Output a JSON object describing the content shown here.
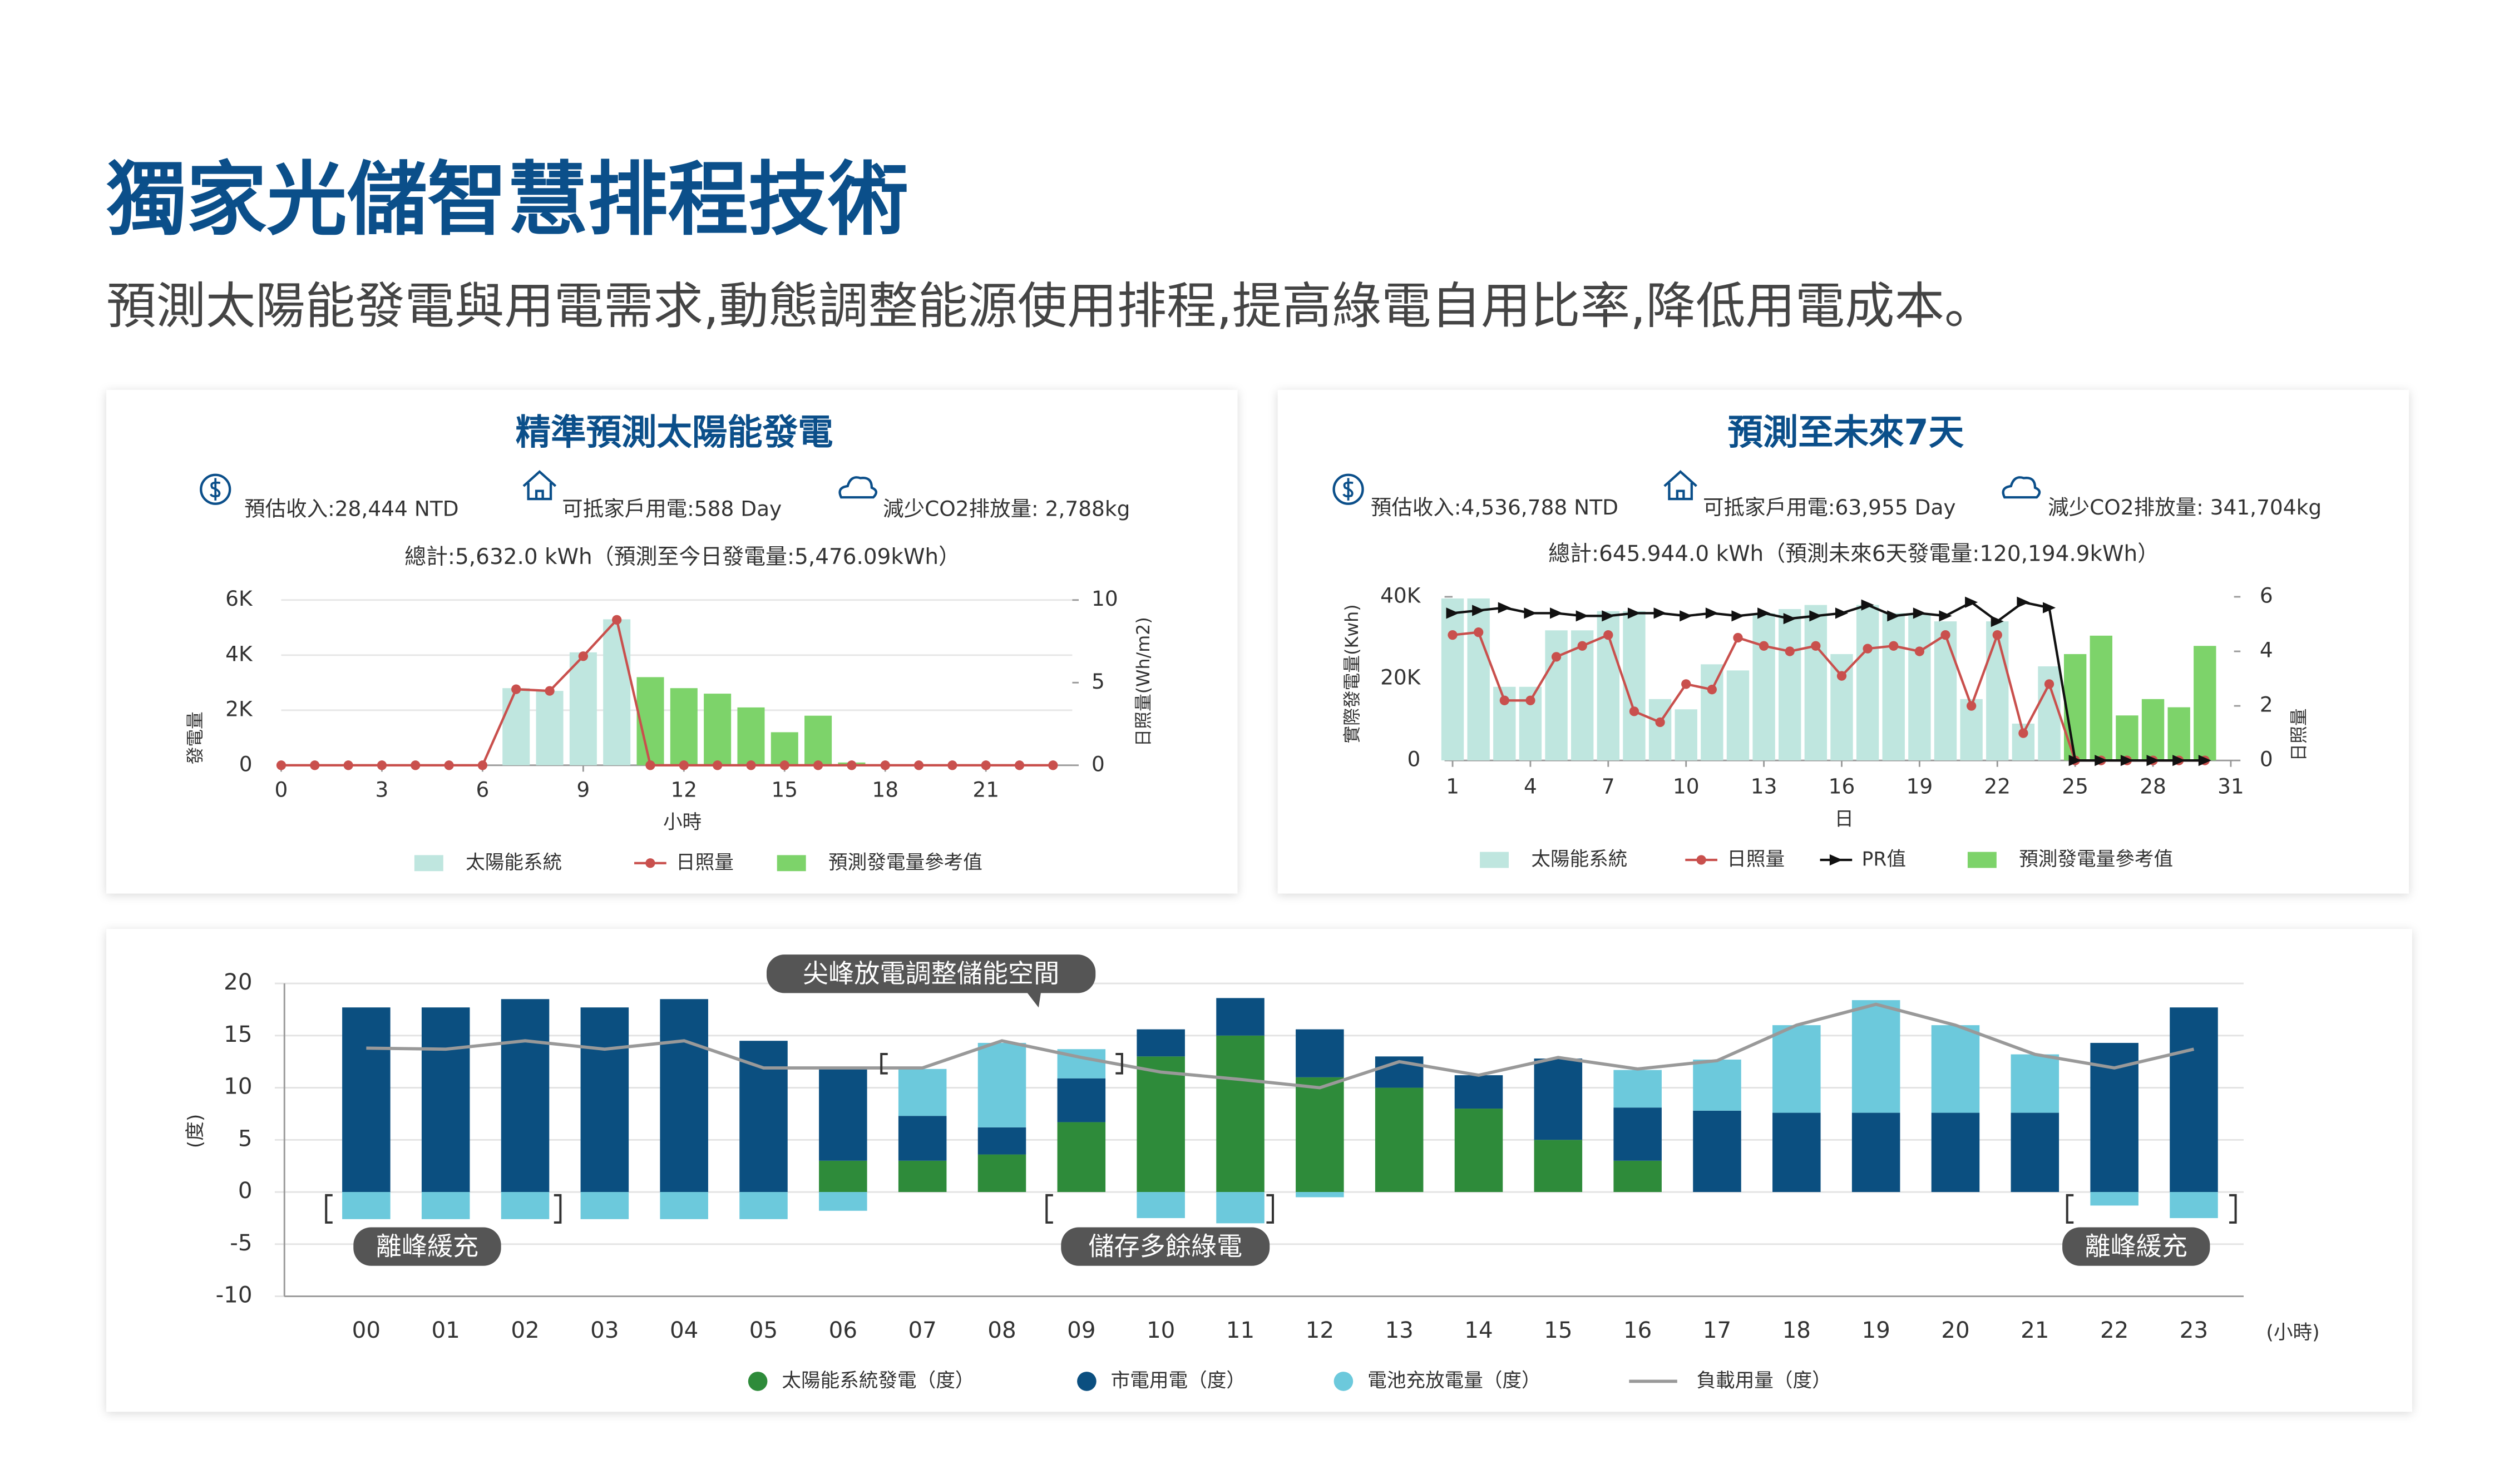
{
  "header": {
    "title": "獨家光儲智慧排程技術",
    "subtitle": "預測太陽能發電與用電需求,動態調整能源使用排程,提高綠電自用比率,降低用電成本。"
  },
  "chart_data": [
    {
      "type": "combo",
      "title": "精準預測太陽能發電",
      "stats": [
        "預估收入:28,444 NTD",
        "可抵家戶用電:588 Day",
        "減少CO2排放量: 2,788kg"
      ],
      "total": "總計:5,632.0 kWh（預測至今日發電量:5,476.09kWh）",
      "x": [
        0,
        1,
        2,
        3,
        4,
        5,
        6,
        7,
        8,
        9,
        10,
        11,
        12,
        13,
        14,
        15,
        16,
        17,
        18,
        19,
        20,
        21,
        22,
        23
      ],
      "xlim": [
        0,
        23
      ],
      "xticks": [
        0,
        3,
        6,
        9,
        12,
        15,
        18,
        21
      ],
      "xlabel": "小時",
      "ylabel": "發電量",
      "ylim": [
        0,
        6000
      ],
      "yticks": [
        0,
        {
          "value": 2000,
          "label": "2K"
        },
        {
          "value": 4000,
          "label": "4K"
        },
        {
          "value": 6000,
          "label": "6K"
        }
      ],
      "y2label": "日照量(Wh/m2)",
      "y2lim": [
        0,
        10
      ],
      "y2ticks": [
        0,
        5,
        10
      ],
      "grid": true,
      "series": [
        {
          "name": "太陽能系統",
          "type": "bar",
          "color": "#bfe6df",
          "values": [
            null,
            null,
            null,
            null,
            null,
            null,
            null,
            2800,
            2700,
            4100,
            5300,
            null,
            null,
            null,
            null,
            null,
            null,
            null,
            null,
            null,
            null,
            null,
            null,
            null
          ]
        },
        {
          "name": "日照量",
          "type": "line",
          "axis": "y2",
          "marker": "circle",
          "color": "#c9504d",
          "values": [
            0,
            0,
            0,
            0,
            0,
            0,
            0,
            4.6,
            4.5,
            6.6,
            8.8,
            0,
            0,
            0,
            0,
            0,
            0,
            0,
            0,
            0,
            0,
            0,
            0,
            0
          ]
        },
        {
          "name": "預測發電量參考值",
          "type": "bar",
          "color": "#7dd36a",
          "values": [
            null,
            null,
            null,
            null,
            null,
            null,
            null,
            null,
            null,
            null,
            null,
            3200,
            2800,
            2600,
            2100,
            1200,
            1800,
            100,
            null,
            null,
            null,
            null,
            null,
            null
          ]
        }
      ]
    },
    {
      "type": "combo",
      "title": "預測至未來7天",
      "stats": [
        "預估收入:4,536,788 NTD",
        "可抵家戶用電:63,955 Day",
        "減少CO2排放量: 341,704kg"
      ],
      "total": "總計:645.944.0 kWh（預測未來6天發電量:120,194.9kWh）",
      "x": [
        1,
        2,
        3,
        4,
        5,
        6,
        7,
        8,
        9,
        10,
        11,
        12,
        13,
        14,
        15,
        16,
        17,
        18,
        19,
        20,
        21,
        22,
        23,
        24,
        25,
        26,
        27,
        28,
        29,
        30
      ],
      "xlim": [
        1,
        31
      ],
      "xticks": [
        1,
        4,
        7,
        10,
        13,
        16,
        19,
        22,
        25,
        28,
        31
      ],
      "xlabel": "日",
      "ylabel": "實際發電量(Kwh)",
      "ylim": [
        0,
        40000
      ],
      "yticks": [
        0,
        {
          "value": 20000,
          "label": "20K"
        },
        {
          "value": 40000,
          "label": "40K"
        }
      ],
      "y2label": "日照量",
      "y2lim": [
        0,
        6
      ],
      "y2ticks": [
        0,
        2,
        4,
        6
      ],
      "grid": false,
      "series": [
        {
          "name": "太陽能系統",
          "type": "bar",
          "color": "#bfe6df",
          "values": [
            39600,
            39600,
            18000,
            18000,
            31800,
            31800,
            36500,
            36500,
            15000,
            12500,
            23500,
            22000,
            36000,
            37000,
            38000,
            26000,
            38000,
            36000,
            36000,
            34000,
            15000,
            34000,
            9000,
            23000,
            null,
            null,
            null,
            null,
            null,
            null
          ]
        },
        {
          "name": "日照量",
          "type": "line",
          "axis": "y2",
          "marker": "circle",
          "color": "#c9504d",
          "values": [
            4.6,
            4.7,
            2.2,
            2.2,
            3.8,
            4.2,
            4.6,
            1.8,
            1.4,
            2.8,
            2.6,
            4.5,
            4.2,
            4.0,
            4.2,
            3.1,
            4.1,
            4.2,
            4.0,
            4.6,
            2.0,
            4.6,
            1.0,
            2.8,
            0,
            0,
            0,
            0,
            0,
            0
          ]
        },
        {
          "name": "PR值",
          "type": "line",
          "axis": "y2",
          "marker": "triangle",
          "color": "#111111",
          "values": [
            5.4,
            5.5,
            5.6,
            5.4,
            5.4,
            5.3,
            5.3,
            5.4,
            5.4,
            5.3,
            5.4,
            5.3,
            5.4,
            5.2,
            5.3,
            5.4,
            5.7,
            5.3,
            5.4,
            5.3,
            5.8,
            5.1,
            5.8,
            5.6,
            0,
            0,
            0,
            0,
            0,
            0
          ]
        },
        {
          "name": "預測發電量參考值",
          "type": "bar",
          "color": "#7dd36a",
          "values": [
            null,
            null,
            null,
            null,
            null,
            null,
            null,
            null,
            null,
            null,
            null,
            null,
            null,
            null,
            null,
            null,
            null,
            null,
            null,
            null,
            null,
            null,
            null,
            null,
            26000,
            30500,
            11000,
            15000,
            13000,
            28000
          ]
        }
      ]
    },
    {
      "type": "stacked-bar",
      "categories": [
        "00",
        "01",
        "02",
        "03",
        "04",
        "05",
        "06",
        "07",
        "08",
        "09",
        "10",
        "11",
        "12",
        "13",
        "14",
        "15",
        "16",
        "17",
        "18",
        "19",
        "20",
        "21",
        "22",
        "23"
      ],
      "xlabel": "(小時)",
      "ylabel": "(度)",
      "ylim": [
        -10,
        20
      ],
      "yticks": [
        -10,
        -5,
        0,
        5,
        10,
        15,
        20
      ],
      "grid": true,
      "series": [
        {
          "name": "太陽能系統發電（度）",
          "type": "bar",
          "color": "#2e8b3a",
          "values": [
            0,
            0,
            0,
            0,
            0,
            0,
            3,
            3,
            3.6,
            6.7,
            13,
            15,
            11,
            10,
            8,
            5,
            3,
            0,
            0,
            0,
            0,
            0,
            0,
            0
          ]
        },
        {
          "name": "市電用電（度）",
          "type": "bar",
          "color": "#0b4f80",
          "values": [
            17.7,
            17.7,
            18.5,
            17.7,
            18.5,
            14.5,
            8.8,
            4.3,
            2.6,
            4.2,
            2.6,
            3.6,
            4.6,
            3,
            3.2,
            7.8,
            5.1,
            7.8,
            7.6,
            7.6,
            7.6,
            7.6,
            14.3,
            17.7
          ]
        },
        {
          "name": "電池充放電量（度）",
          "type": "bar",
          "color": "#6cc9dc",
          "values": [
            -2.6,
            -2.6,
            -2.6,
            -2.6,
            -2.6,
            -2.6,
            -1.8,
            4.5,
            8.1,
            2.8,
            -2.5,
            -3,
            -0.5,
            0,
            0,
            0,
            3.6,
            4.9,
            8.4,
            10.8,
            8.4,
            5.6,
            -1.3,
            -2.5
          ]
        },
        {
          "name": "負載用量（度）",
          "type": "line",
          "color": "#999999",
          "values": [
            13.8,
            13.7,
            14.5,
            13.7,
            14.5,
            11.9,
            11.9,
            11.9,
            14.5,
            12.9,
            11.5,
            10.8,
            10,
            12.5,
            11.2,
            12.9,
            11.8,
            12.6,
            16,
            18,
            16,
            13.2,
            11.9,
            13.7
          ]
        }
      ],
      "annotations": [
        "尖峰放電調整儲能空間",
        "離峰緩充",
        "儲存多餘綠電",
        "離峰緩充"
      ]
    }
  ]
}
